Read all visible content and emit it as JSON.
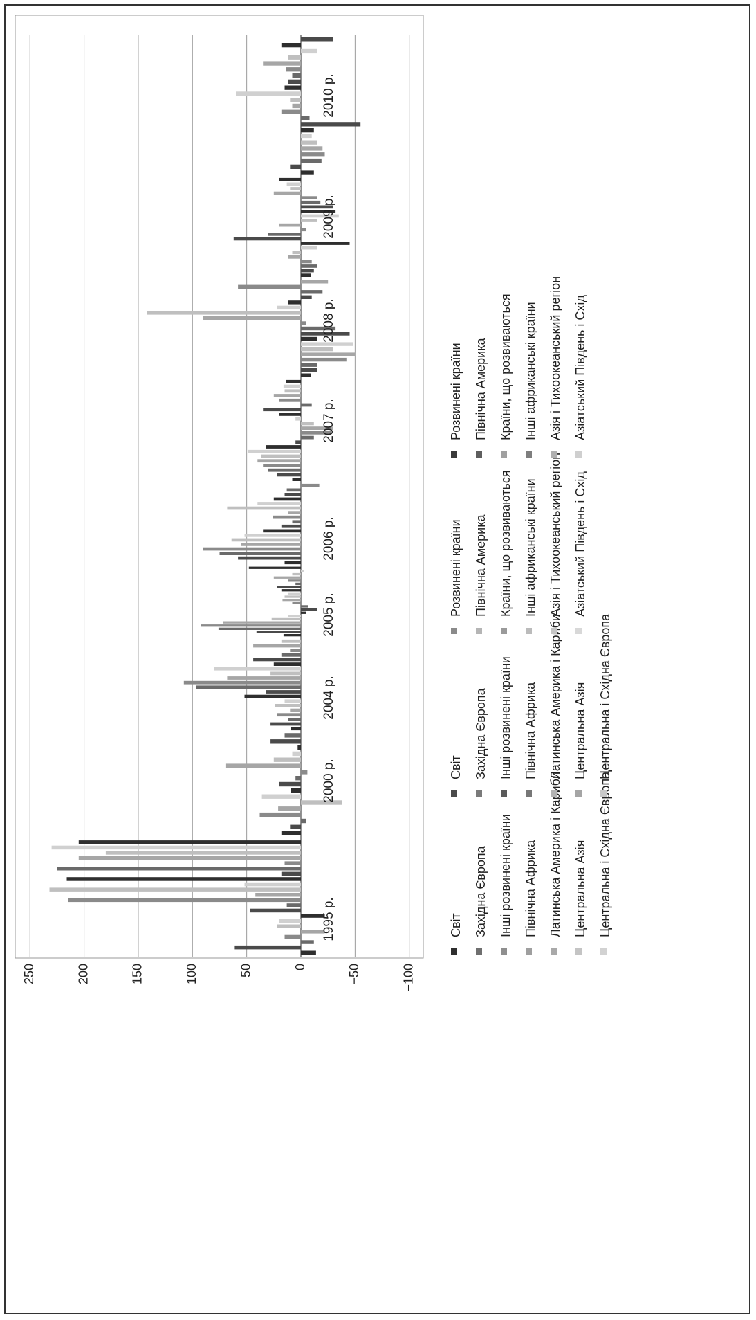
{
  "chart_data": {
    "type": "bar",
    "orientation": "rotated-90",
    "yaxis": {
      "ylim": [
        -100,
        250
      ],
      "ticks": [
        "250",
        "200",
        "150",
        "100",
        "50",
        "0",
        "−50",
        "−100"
      ],
      "tick_values": [
        250,
        200,
        150,
        100,
        50,
        0,
        -50,
        -100
      ],
      "grid": true
    },
    "period_labels": [
      "1995 р.",
      "2000 р.",
      "2004 р.",
      "2005 р.",
      "2006 р.",
      "2007 р.",
      "2008 р.",
      "2009 р.",
      "2010 р."
    ],
    "groups": [
      {
        "label": "1995 р.",
        "values": [
          -14,
          61,
          -12,
          15,
          -22,
          22,
          20,
          -22,
          47,
          13,
          215,
          42,
          232,
          52,
          216,
          18,
          225,
          15,
          205,
          180,
          230,
          205
        ]
      },
      {
        "label": "2000 р.",
        "values": [
          18,
          10,
          -5,
          38,
          21,
          -38,
          36,
          9,
          20,
          5,
          -6,
          69,
          25,
          8,
          3,
          28,
          15
        ]
      },
      {
        "label": "2004 р.",
        "values": [
          9,
          28,
          12,
          22,
          10,
          24,
          15,
          52,
          32,
          97,
          108,
          68,
          28,
          80,
          25,
          44,
          18,
          10,
          44,
          18
        ]
      },
      {
        "label": "2005 р.",
        "values": [
          16,
          41,
          76,
          92,
          72,
          27,
          12,
          -5,
          -15,
          -7,
          8,
          17,
          15,
          12,
          18,
          22,
          5,
          12,
          25,
          8,
          -3,
          48
        ]
      },
      {
        "label": "2006 р.",
        "values": [
          15,
          58,
          75,
          90,
          55,
          64,
          52,
          35,
          18,
          8,
          26,
          12,
          68,
          40,
          25,
          15,
          13,
          -17
        ]
      },
      {
        "label": "2007 р.",
        "values": [
          8,
          22,
          30,
          35,
          40,
          37,
          49,
          32,
          5,
          -12,
          -28,
          -30,
          -12,
          5,
          20,
          35,
          -10,
          20,
          25,
          15,
          16,
          14
        ]
      },
      {
        "label": "2008 р.",
        "values": [
          -9,
          -15,
          -15,
          -42,
          -50,
          -30,
          -48,
          -15,
          -45,
          -32,
          -5,
          90,
          142,
          22,
          12,
          -10,
          -20,
          58,
          -25
        ]
      },
      {
        "label": "2009 р.",
        "values": [
          -9,
          -12,
          -15,
          -10,
          12,
          8,
          -15,
          -45,
          62,
          30,
          -5,
          20,
          -15,
          -35,
          -32,
          -30,
          -18,
          -15,
          25,
          10,
          13,
          20
        ]
      },
      {
        "label": "2010 р.",
        "values": [
          -12,
          10,
          -19,
          -22,
          -20,
          -15,
          -10,
          -12,
          -55,
          -8,
          18,
          8,
          10,
          60,
          15,
          12,
          8,
          14,
          35,
          12,
          -15,
          18,
          -30
        ]
      }
    ],
    "legend": [
      {
        "group": 1,
        "name": "Світ",
        "color": "#2e2e2e"
      },
      {
        "group": 1,
        "name": "Західна Європа",
        "color": "#6f6f6f"
      },
      {
        "group": 1,
        "name": "Інші розвинені країни",
        "color": "#8f8f8f"
      },
      {
        "group": 1,
        "name": "Північна Африка",
        "color": "#9f9f9f"
      },
      {
        "group": 1,
        "name": "Латинська Америка і Кариби",
        "color": "#a9a9a9"
      },
      {
        "group": 1,
        "name": "Центральна Азія",
        "color": "#c4c4c4"
      },
      {
        "group": 1,
        "name": "Центральна і Східна Європа",
        "color": "#d2d2d2"
      },
      {
        "group": 2,
        "name": "Світ",
        "color": "#4a4a4a"
      },
      {
        "group": 2,
        "name": "Західна Європа",
        "color": "#7a7a7a"
      },
      {
        "group": 2,
        "name": "Інші розвинені країни",
        "color": "#5a5a5a"
      },
      {
        "group": 2,
        "name": "Північна Африка",
        "color": "#777777"
      },
      {
        "group": 2,
        "name": "Латинська Америка і Кариби",
        "color": "#b3b3b3"
      },
      {
        "group": 2,
        "name": "Центральна Азія",
        "color": "#a5a5a5"
      },
      {
        "group": 2,
        "name": "Центральна і Східна Європа",
        "color": "#c8c8c8"
      },
      {
        "group": 3,
        "name": "Розвинені країни",
        "color": "#8a8a8a"
      },
      {
        "group": 3,
        "name": "Північна Америка",
        "color": "#b5b5b5"
      },
      {
        "group": 3,
        "name": "Країни, що розвиваються",
        "color": "#9a9a9a"
      },
      {
        "group": 3,
        "name": "Інші африканські країни",
        "color": "#bbbbbb"
      },
      {
        "group": 3,
        "name": "Азія і Тихоокеанський регіон",
        "color": "#c5c5c5"
      },
      {
        "group": 3,
        "name": "Азіатський Південь і Схід",
        "color": "#d8d8d8"
      },
      {
        "group": 4,
        "name": "Розвинені країни",
        "color": "#3a3a3a"
      },
      {
        "group": 4,
        "name": "Північна Америка",
        "color": "#5e5e5e"
      },
      {
        "group": 4,
        "name": "Країни, що розвиваються",
        "color": "#a0a0a0"
      },
      {
        "group": 4,
        "name": "Інші африканські країни",
        "color": "#7e7e7e"
      },
      {
        "group": 4,
        "name": "Азія і Тихоокеанський регіон",
        "color": "#b0b0b0"
      },
      {
        "group": 4,
        "name": "Азіатський Південь і Схід",
        "color": "#cfcfcf"
      }
    ],
    "bar_palette": [
      "#2e2e2e",
      "#4a4a4a",
      "#6a6a6a",
      "#8a8a8a",
      "#a6a6a6",
      "#bfbfbf",
      "#d0d0d0"
    ]
  }
}
